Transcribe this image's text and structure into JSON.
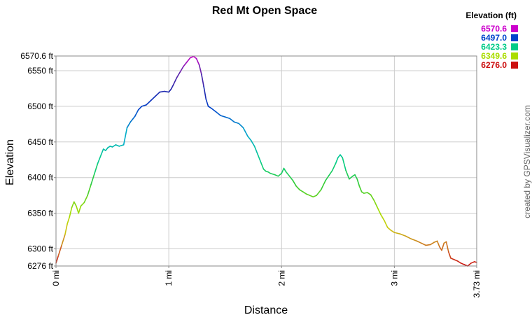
{
  "chart_data": {
    "type": "line",
    "title": "Red Mt Open Space",
    "xlabel": "Distance",
    "ylabel": "Elevation",
    "xlim": [
      0,
      3.73
    ],
    "ylim": [
      6276.0,
      6570.6
    ],
    "x_ticks": [
      {
        "value": 0,
        "label": "0 mi"
      },
      {
        "value": 1,
        "label": "1 mi"
      },
      {
        "value": 2,
        "label": "2 mi"
      },
      {
        "value": 3,
        "label": "3 mi"
      },
      {
        "value": 3.73,
        "label": "3.73 mi"
      }
    ],
    "y_ticks": [
      {
        "value": 6276.0,
        "label": "6276 ft"
      },
      {
        "value": 6300,
        "label": "6300 ft"
      },
      {
        "value": 6350,
        "label": "6350 ft"
      },
      {
        "value": 6400,
        "label": "6400 ft"
      },
      {
        "value": 6450,
        "label": "6450 ft"
      },
      {
        "value": 6500,
        "label": "6500 ft"
      },
      {
        "value": 6550,
        "label": "6550 ft"
      },
      {
        "value": 6570.6,
        "label": "6570.6 ft"
      }
    ],
    "grid": true,
    "legend": {
      "title": "Elevation (ft)",
      "placement": "top-right",
      "entries": [
        {
          "label": "6570.6",
          "color": "#cc00cc"
        },
        {
          "label": "6497.0",
          "color": "#0044cc"
        },
        {
          "label": "6423.3",
          "color": "#00cc88"
        },
        {
          "label": "6349.6",
          "color": "#aadd00"
        },
        {
          "label": "6276.0",
          "color": "#cc1111"
        }
      ]
    },
    "color_scale": [
      {
        "value": 6276.0,
        "color": "#cc1111"
      },
      {
        "value": 6300.0,
        "color": "#cc6622"
      },
      {
        "value": 6330.0,
        "color": "#cccc11"
      },
      {
        "value": 6349.6,
        "color": "#aadd00"
      },
      {
        "value": 6390.0,
        "color": "#33cc33"
      },
      {
        "value": 6423.3,
        "color": "#00cc88"
      },
      {
        "value": 6460.0,
        "color": "#00aacc"
      },
      {
        "value": 6497.0,
        "color": "#0044cc"
      },
      {
        "value": 6525.0,
        "color": "#2222aa"
      },
      {
        "value": 6550.0,
        "color": "#6622aa"
      },
      {
        "value": 6570.6,
        "color": "#cc00cc"
      }
    ],
    "series": [
      {
        "x": [
          0,
          0.02,
          0.05,
          0.08,
          0.1,
          0.12,
          0.14,
          0.16,
          0.18,
          0.2,
          0.22,
          0.25,
          0.28,
          0.31,
          0.34,
          0.37,
          0.4,
          0.42,
          0.44,
          0.46,
          0.48,
          0.5,
          0.53,
          0.56,
          0.6,
          0.63,
          0.66,
          0.68,
          0.7,
          0.73,
          0.76,
          0.8,
          0.84,
          0.88,
          0.92,
          0.96,
          1.0,
          1.02,
          1.04,
          1.07,
          1.1,
          1.13,
          1.16,
          1.19,
          1.22,
          1.245,
          1.27,
          1.29,
          1.31,
          1.33,
          1.35,
          1.38,
          1.42,
          1.46,
          1.5,
          1.54,
          1.58,
          1.62,
          1.66,
          1.7,
          1.73,
          1.76,
          1.79,
          1.82,
          1.84,
          1.86,
          1.88,
          1.9,
          1.94,
          1.97,
          2.0,
          2.02,
          2.04,
          2.07,
          2.1,
          2.13,
          2.16,
          2.19,
          2.22,
          2.25,
          2.28,
          2.31,
          2.35,
          2.39,
          2.42,
          2.45,
          2.48,
          2.5,
          2.52,
          2.54,
          2.57,
          2.6,
          2.63,
          2.65,
          2.67,
          2.69,
          2.71,
          2.73,
          2.76,
          2.79,
          2.82,
          2.85,
          2.88,
          2.91,
          2.94,
          2.97,
          3.0,
          3.05,
          3.1,
          3.15,
          3.2,
          3.24,
          3.28,
          3.32,
          3.35,
          3.38,
          3.4,
          3.42,
          3.44,
          3.46,
          3.48,
          3.5,
          3.53,
          3.56,
          3.59,
          3.62,
          3.65,
          3.68,
          3.71,
          3.73
        ],
        "y": [
          6280,
          6290,
          6305,
          6320,
          6335,
          6345,
          6358,
          6366,
          6360,
          6350,
          6360,
          6365,
          6375,
          6390,
          6405,
          6420,
          6432,
          6440,
          6438,
          6442,
          6444,
          6443,
          6446,
          6444,
          6446,
          6470,
          6478,
          6482,
          6486,
          6495,
          6500,
          6502,
          6508,
          6514,
          6520,
          6521,
          6520,
          6524,
          6530,
          6540,
          6548,
          6556,
          6562,
          6568,
          6570,
          6567,
          6558,
          6545,
          6528,
          6510,
          6500,
          6497,
          6492,
          6487,
          6485,
          6483,
          6478,
          6476,
          6470,
          6458,
          6452,
          6444,
          6432,
          6420,
          6412,
          6409,
          6408,
          6406,
          6404,
          6402,
          6406,
          6413,
          6408,
          6402,
          6396,
          6388,
          6383,
          6380,
          6377,
          6375,
          6373,
          6375,
          6383,
          6396,
          6403,
          6410,
          6420,
          6428,
          6432,
          6428,
          6410,
          6398,
          6402,
          6404,
          6398,
          6388,
          6380,
          6378,
          6379,
          6376,
          6368,
          6358,
          6348,
          6340,
          6330,
          6326,
          6323,
          6321,
          6318,
          6314,
          6311,
          6308,
          6305,
          6306,
          6309,
          6311,
          6303,
          6298,
          6308,
          6310,
          6296,
          6287,
          6285,
          6283,
          6280,
          6278,
          6276,
          6280,
          6282,
          6281
        ]
      }
    ]
  },
  "credit": "created by GPSVisualizer.com"
}
